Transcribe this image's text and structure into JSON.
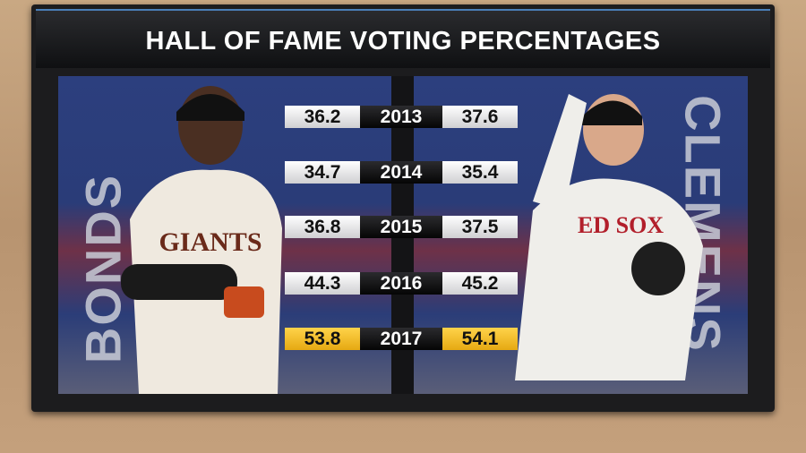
{
  "title": "HALL OF FAME VOTING PERCENTAGES",
  "left_player": "BONDS",
  "right_player": "CLEMENS",
  "rows": [
    {
      "year": "2013",
      "left": 36.2,
      "right": 37.6
    },
    {
      "year": "2014",
      "left": 34.7,
      "right": 35.4
    },
    {
      "year": "2015",
      "left": 36.8,
      "right": 37.5
    },
    {
      "year": "2016",
      "left": 44.3,
      "right": 45.2
    },
    {
      "year": "2017",
      "left": 53.8,
      "right": 54.1
    }
  ]
}
